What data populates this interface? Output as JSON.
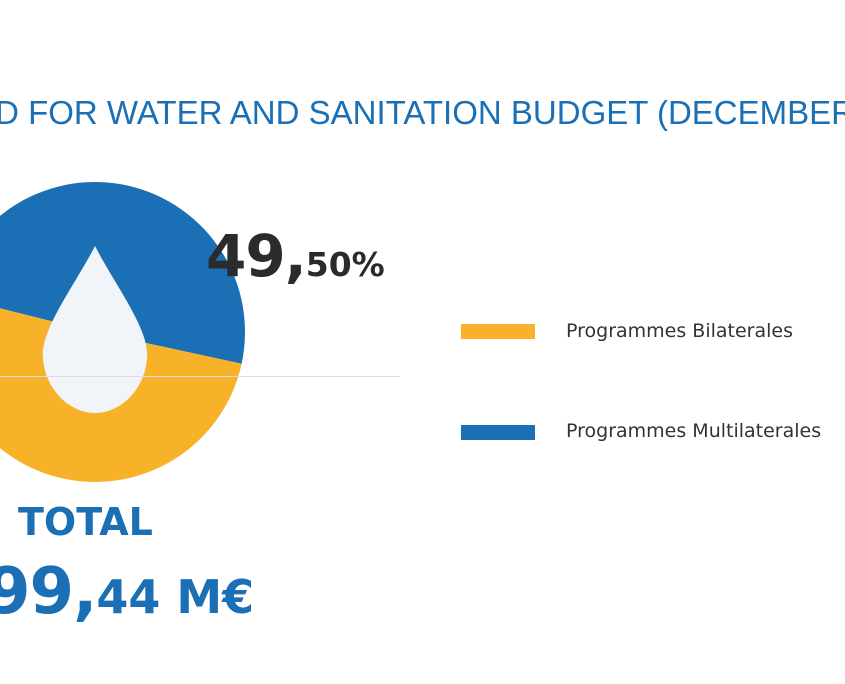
{
  "title": "D FOR WATER AND SANITATION BUDGET (DECEMBER",
  "colors": {
    "bilateral": "#f8b229",
    "multilateral": "#1a6fb5",
    "drop": "#f1f4f8",
    "title": "#1a6fb5"
  },
  "icons": {
    "center": "water-drop-icon"
  },
  "chart_data": {
    "type": "pie",
    "series": [
      {
        "name": "Programmes Bilaterales",
        "value": 50.5
      },
      {
        "name": "Programmes Multilaterales",
        "value": 49.5
      }
    ],
    "data_label": {
      "series": "Programmes Multilaterales",
      "integer": "49,",
      "fraction": "50%"
    },
    "legend_position": "right"
  },
  "legend": [
    {
      "label": "Programmes Bilaterales"
    },
    {
      "label": "Programmes Multilaterales"
    }
  ],
  "total": {
    "label": "TOTAL",
    "value_integer": "99,",
    "value_fraction": "44 M€"
  }
}
